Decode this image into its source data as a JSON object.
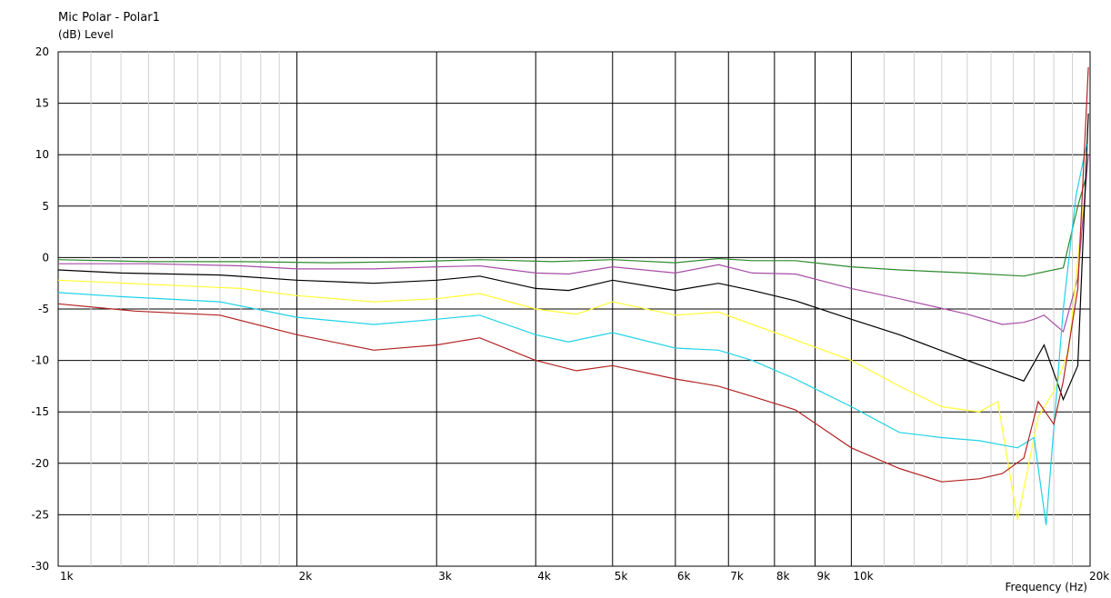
{
  "chart_data": {
    "type": "line",
    "title": "Mic Polar - Polar1",
    "ylabel": "(dB)  Level",
    "xlabel": "Frequency  (Hz)",
    "x_scale": "log",
    "xlim": [
      1000,
      20000
    ],
    "ylim": [
      -30,
      20
    ],
    "grid": true,
    "y_ticks": [
      20,
      15,
      10,
      5,
      0,
      -5,
      -10,
      -15,
      -20,
      -25,
      -30
    ],
    "y_tick_labels": [
      "20",
      "15",
      "10",
      "5",
      "0",
      "-5",
      "-10",
      "-15",
      "-20",
      "-25",
      "-30"
    ],
    "x_grid": [
      2000,
      3000,
      4000,
      5000,
      6000,
      7000,
      8000,
      9000,
      10000
    ],
    "x_ticks": [
      1000,
      2000,
      3000,
      4000,
      5000,
      6000,
      7000,
      8000,
      9000,
      10000,
      20000
    ],
    "x_tick_labels": [
      "1k",
      "2k",
      "3k",
      "4k",
      "5k",
      "6k",
      "7k",
      "8k",
      "9k",
      "10k",
      "20k"
    ],
    "series": [
      {
        "color": "#2e8b2e",
        "x": [
          1000,
          1300,
          1700,
          2200,
          2800,
          3400,
          4200,
          5000,
          6000,
          6800,
          7500,
          8500,
          10000,
          11500,
          14000,
          16500,
          18500,
          19300,
          19800
        ],
        "y": [
          -0.2,
          -0.4,
          -0.4,
          -0.5,
          -0.4,
          -0.2,
          -0.4,
          -0.2,
          -0.5,
          -0.1,
          -0.3,
          -0.3,
          -0.9,
          -1.2,
          -1.5,
          -1.8,
          -1.0,
          5,
          8
        ]
      },
      {
        "color": "#a64ca6",
        "x": [
          1000,
          1300,
          1700,
          2000,
          2500,
          3000,
          3400,
          4000,
          4400,
          5000,
          6000,
          6800,
          7500,
          8500,
          10000,
          11500,
          14000,
          15500,
          16500,
          17000,
          17500,
          18500,
          19300,
          19900
        ],
        "y": [
          -0.6,
          -0.6,
          -0.8,
          -1.1,
          -1.1,
          -0.9,
          -0.8,
          -1.5,
          -1.6,
          -0.9,
          -1.5,
          -0.7,
          -1.5,
          -1.6,
          -3,
          -4,
          -5.5,
          -6.5,
          -6.3,
          -6,
          -5.6,
          -7.2,
          -2,
          10
        ]
      },
      {
        "color": "#000000",
        "x": [
          1000,
          1200,
          1600,
          2000,
          2500,
          3000,
          3400,
          4000,
          4400,
          5000,
          6000,
          6800,
          7500,
          8500,
          10000,
          11500,
          14000,
          16500,
          17500,
          18500,
          19300,
          19900
        ],
        "y": [
          -1.2,
          -1.5,
          -1.7,
          -2.2,
          -2.5,
          -2.2,
          -1.8,
          -3,
          -3.2,
          -2.2,
          -3.2,
          -2.5,
          -3.2,
          -4.2,
          -6,
          -7.5,
          -10,
          -12,
          -8.5,
          -13.8,
          -10.5,
          14
        ]
      },
      {
        "color": "#ffff33",
        "x": [
          1000,
          1300,
          1700,
          2000,
          2500,
          3000,
          3400,
          4000,
          4500,
          5000,
          6000,
          6800,
          7500,
          8500,
          10000,
          11500,
          13000,
          14500,
          15300,
          16200,
          17200,
          18000,
          18800,
          19600
        ],
        "y": [
          -2.2,
          -2.6,
          -3,
          -3.7,
          -4.3,
          -4,
          -3.5,
          -5,
          -5.5,
          -4.3,
          -5.6,
          -5.3,
          -6.5,
          -8,
          -10,
          -12.5,
          -14.5,
          -15,
          -14,
          -25.5,
          -15.5,
          -13,
          -9,
          5
        ]
      },
      {
        "color": "#1ed2e6",
        "x": [
          1000,
          1200,
          1600,
          2000,
          2500,
          3000,
          3400,
          4000,
          4400,
          5000,
          6000,
          6800,
          7500,
          8500,
          10000,
          11500,
          13000,
          14500,
          16200,
          17000,
          17600,
          18500,
          19200,
          19800
        ],
        "y": [
          -3.4,
          -3.8,
          -4.3,
          -5.8,
          -6.5,
          -6,
          -5.6,
          -7.5,
          -8.2,
          -7.3,
          -8.8,
          -9,
          -10,
          -11.8,
          -14.5,
          -17,
          -17.5,
          -17.8,
          -18.5,
          -17.5,
          -26,
          -5,
          6,
          11
        ]
      },
      {
        "color": "#b22222",
        "x": [
          1000,
          1250,
          1600,
          2000,
          2500,
          3000,
          3400,
          4000,
          4500,
          5000,
          6000,
          6800,
          7500,
          8500,
          10000,
          11500,
          13000,
          14500,
          15500,
          16500,
          17200,
          18000,
          18500,
          19300,
          19900
        ],
        "y": [
          -4.5,
          -5.2,
          -5.6,
          -7.5,
          -9,
          -8.5,
          -7.8,
          -10,
          -11,
          -10.5,
          -11.8,
          -12.5,
          -13.5,
          -14.8,
          -18.5,
          -20.5,
          -21.8,
          -21.5,
          -21,
          -19.5,
          -14,
          -16.2,
          -12,
          -3,
          18.5
        ]
      }
    ]
  }
}
